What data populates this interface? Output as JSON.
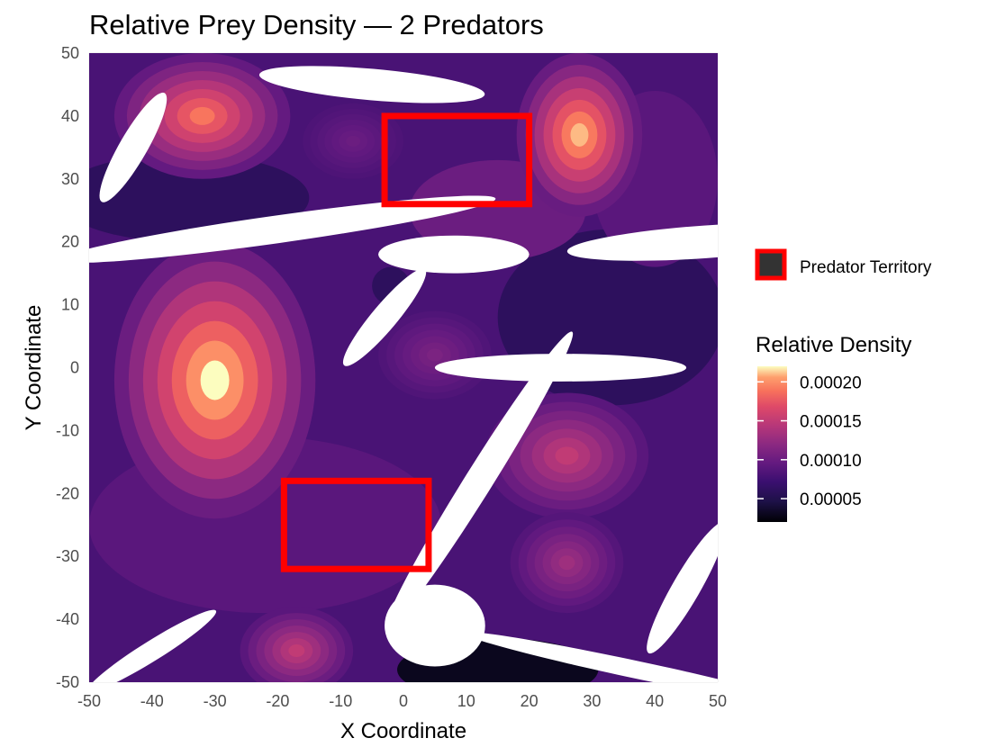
{
  "chart_data": {
    "type": "heatmap",
    "title": "Relative Prey Density — 2 Predators",
    "xlabel": "X Coordinate",
    "ylabel": "Y Coordinate",
    "xlim": [
      -50,
      50
    ],
    "ylim": [
      -50,
      50
    ],
    "x_ticks": [
      "-50",
      "-40",
      "-30",
      "-20",
      "-10",
      "0",
      "10",
      "20",
      "30",
      "40",
      "50"
    ],
    "y_ticks": [
      "-50",
      "-40",
      "-30",
      "-20",
      "-10",
      "0",
      "10",
      "20",
      "30",
      "40",
      "50"
    ],
    "grid": true,
    "colormap": "magma",
    "legend": {
      "placement": "right",
      "territory_label": "Predator Territory",
      "colorbar_title": "Relative Density",
      "colorbar_ticks": [
        "0.00005",
        "0.00010",
        "0.00015",
        "0.00020"
      ],
      "colorbar_range": [
        2e-05,
        0.00022
      ]
    },
    "territories": [
      {
        "xmin": -3,
        "xmax": 20,
        "ymin": 26,
        "ymax": 40
      },
      {
        "xmin": -19,
        "xmax": 4,
        "ymin": -32,
        "ymax": -18
      }
    ],
    "density_peaks": [
      {
        "x": -30,
        "y": -2,
        "value": 0.00022,
        "rx": 16,
        "ry": 22
      },
      {
        "x": -32,
        "y": 40,
        "value": 0.00019,
        "rx": 14,
        "ry": 10
      },
      {
        "x": 28,
        "y": 37,
        "value": 0.00021,
        "rx": 10,
        "ry": 13
      },
      {
        "x": 26,
        "y": -14,
        "value": 0.00015,
        "rx": 13,
        "ry": 10
      },
      {
        "x": 26,
        "y": -31,
        "value": 0.00013,
        "rx": 9,
        "ry": 8
      },
      {
        "x": -17,
        "y": -45,
        "value": 0.00015,
        "rx": 9,
        "ry": 7
      },
      {
        "x": 5,
        "y": 2,
        "value": 0.00011,
        "rx": 9,
        "ry": 7
      },
      {
        "x": 5,
        "y": -41,
        "value": 0.00011,
        "rx": 5,
        "ry": 5
      },
      {
        "x": -8,
        "y": 36,
        "value": 0.0001,
        "rx": 8,
        "ry": 6
      }
    ],
    "background_regions": [
      {
        "x": -35,
        "y": 27,
        "value": 6e-05,
        "rx": 20,
        "ry": 7
      },
      {
        "x": 33,
        "y": 8,
        "value": 6e-05,
        "rx": 18,
        "ry": 14
      },
      {
        "x": -2,
        "y": 13,
        "value": 6e-05,
        "rx": 3,
        "ry": 3
      },
      {
        "x": 15,
        "y": 25,
        "value": 0.0001,
        "rx": 14,
        "ry": 8
      },
      {
        "x": 15,
        "y": -48,
        "value": 3e-05,
        "rx": 16,
        "ry": 5
      },
      {
        "x": 40,
        "y": 30,
        "value": 9e-05,
        "rx": 10,
        "ry": 14
      },
      {
        "x": -22,
        "y": -25,
        "value": 9e-05,
        "rx": 28,
        "ry": 14
      }
    ],
    "white_bands": [
      {
        "x": -20,
        "y": 22,
        "rx": 35,
        "ry": 2.2,
        "rot": -8
      },
      {
        "x": 8,
        "y": 18,
        "rx": 12,
        "ry": 3,
        "rot": 0
      },
      {
        "x": 48,
        "y": 20,
        "rx": 22,
        "ry": 2.6,
        "rot": -4
      },
      {
        "x": 12,
        "y": -18,
        "rx": 28,
        "ry": 2.2,
        "rot": -58
      },
      {
        "x": 25,
        "y": 0,
        "rx": 20,
        "ry": 2.2,
        "rot": 0
      },
      {
        "x": 5,
        "y": -41,
        "rx": 8,
        "ry": 6.5,
        "rot": 0
      },
      {
        "x": -43,
        "y": 35,
        "rx": 10,
        "ry": 2.2,
        "rot": -60
      },
      {
        "x": -3,
        "y": 8,
        "rx": 10,
        "ry": 2,
        "rot": -50
      },
      {
        "x": 45,
        "y": -35,
        "rx": 12,
        "ry": 2.2,
        "rot": -60
      },
      {
        "x": -40,
        "y": -45,
        "rx": 12,
        "ry": 1.6,
        "rot": -32
      },
      {
        "x": 37,
        "y": -48,
        "rx": 28,
        "ry": 1.4,
        "rot": 12
      },
      {
        "x": -5,
        "y": 45,
        "rx": 18,
        "ry": 2.5,
        "rot": 5
      }
    ]
  }
}
